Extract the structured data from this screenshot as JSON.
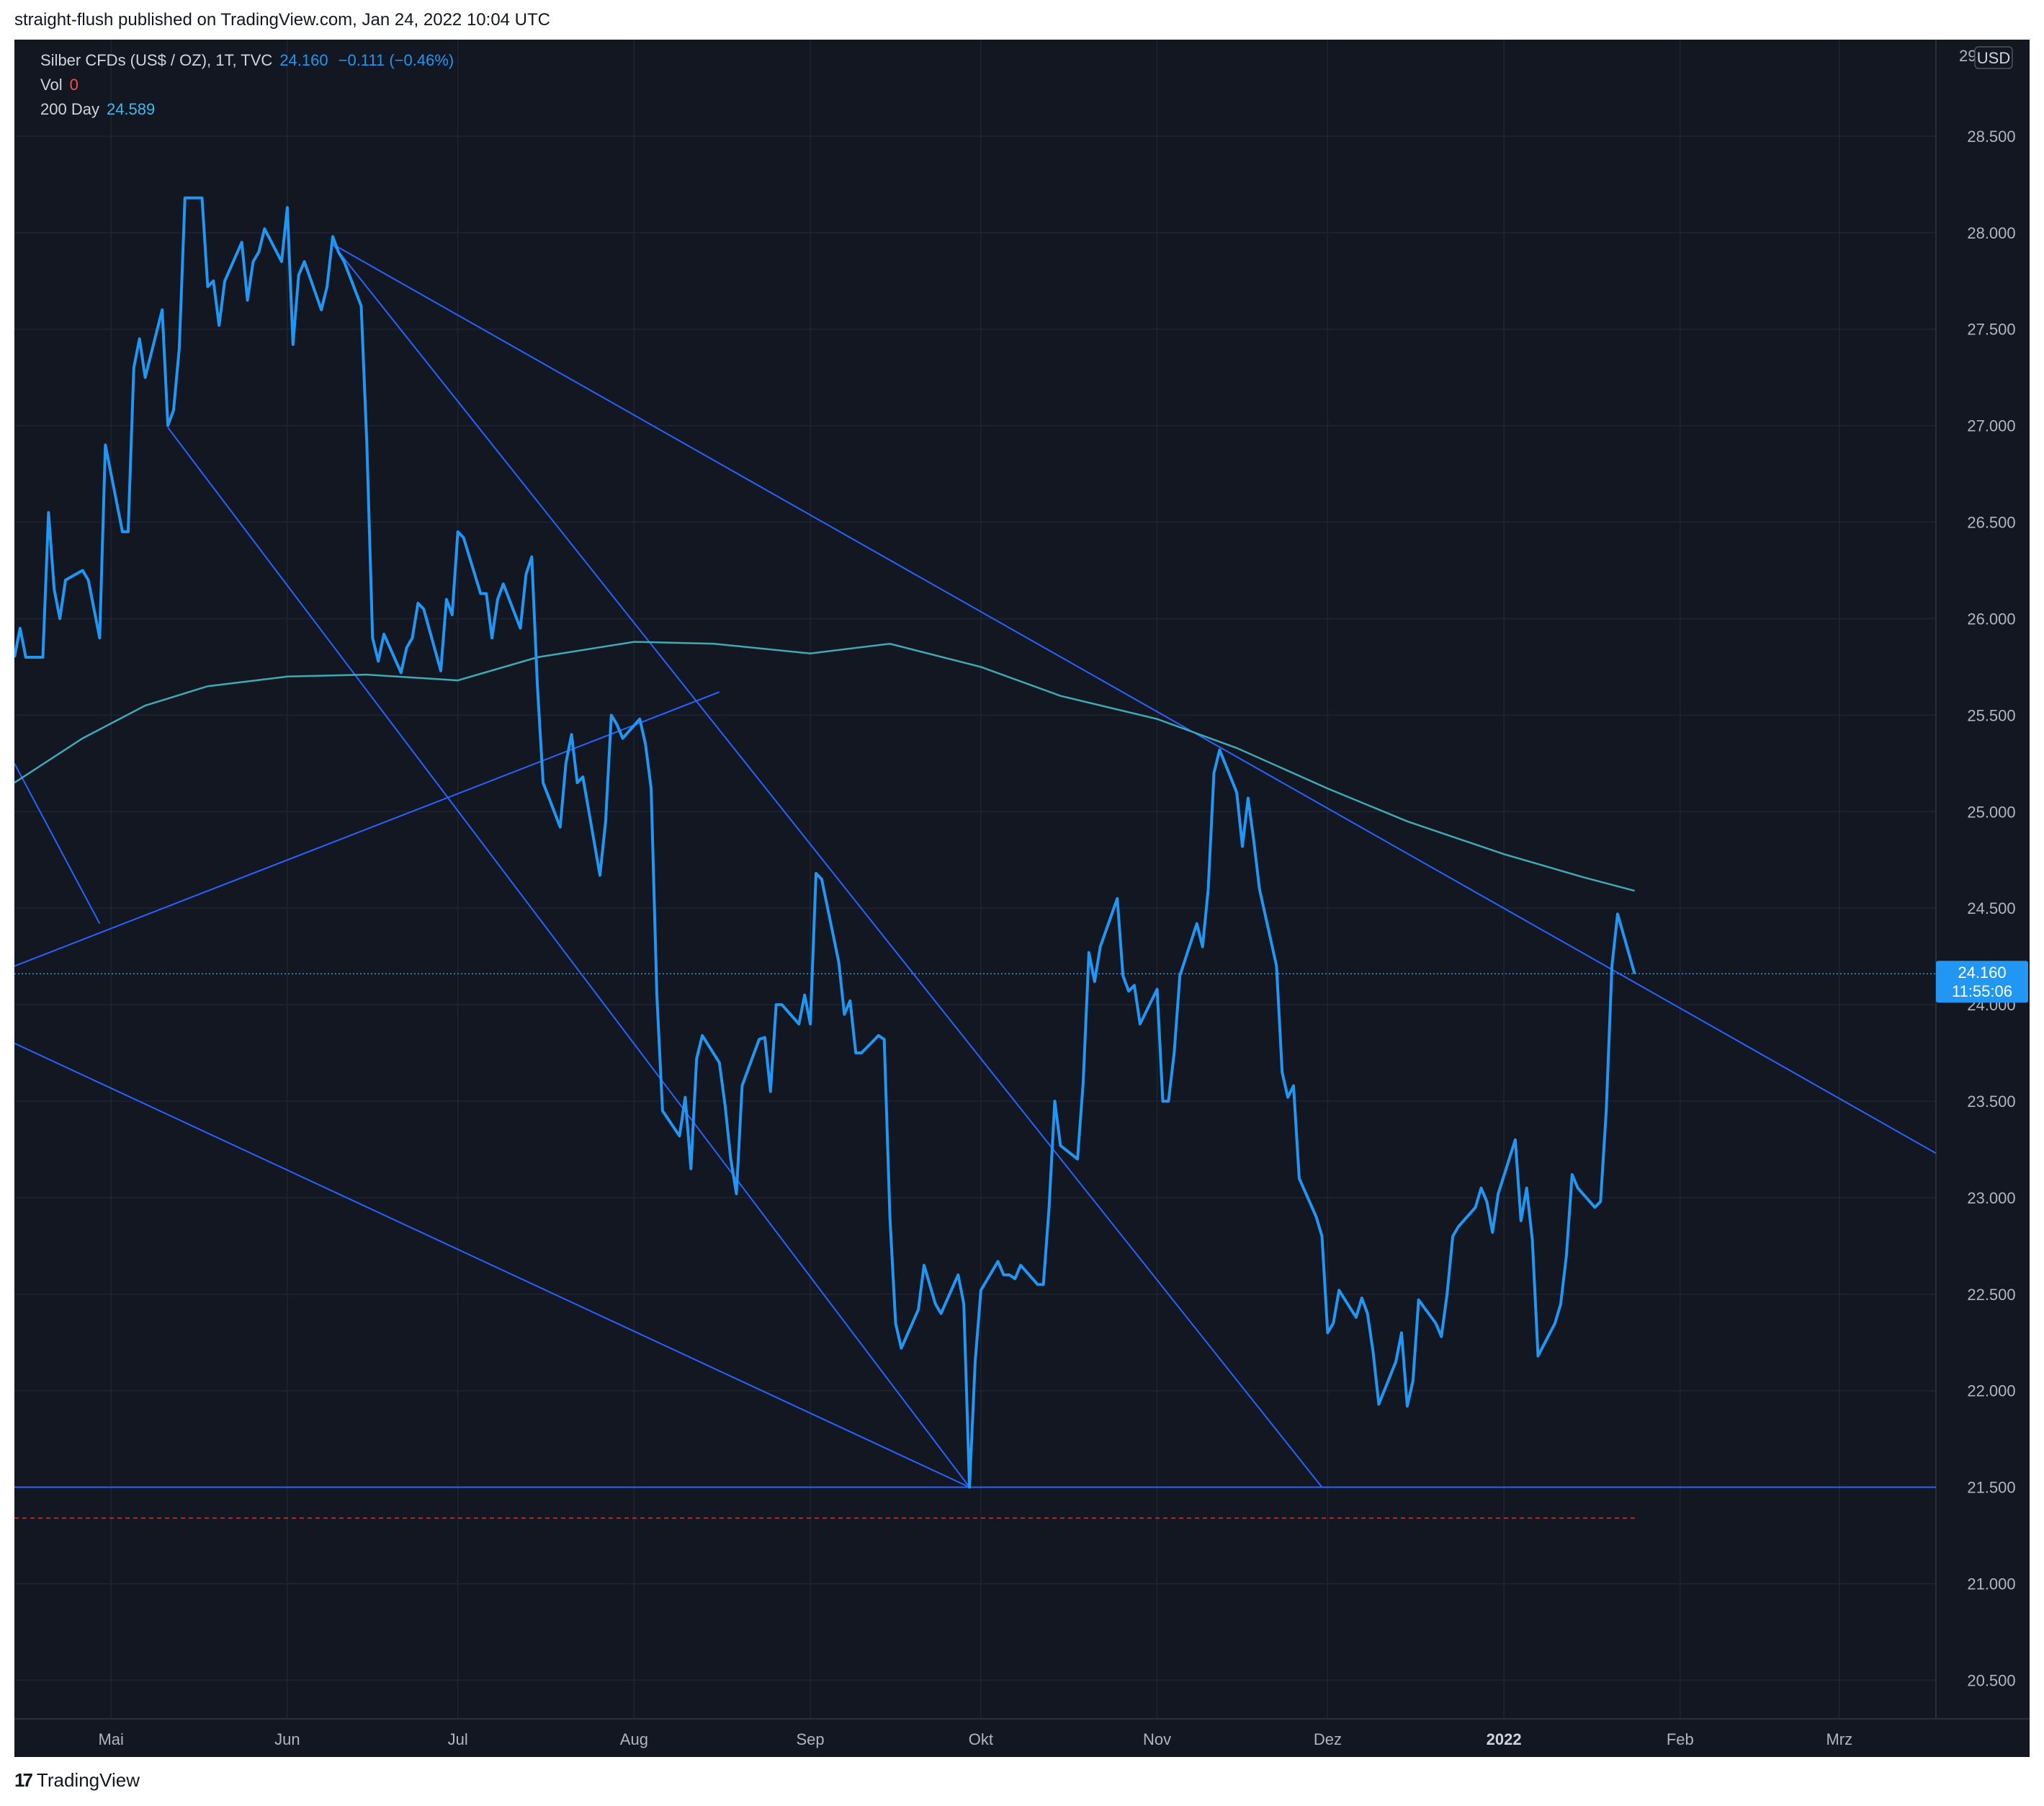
{
  "header": {
    "published": "straight-flush published on TradingView.com, Jan 24, 2022 10:04 UTC"
  },
  "legend": {
    "symbol": "Silber CFDs (US$ / OZ), 1T, TVC",
    "last": "24.160",
    "change": "−0.111 (−0.46%)",
    "vol_label": "Vol",
    "vol_value": "0",
    "ma_label": "200 Day",
    "ma_value": "24.589"
  },
  "axis": {
    "currency": "USD",
    "price_tag": "24.160",
    "countdown": "11:55:06",
    "top_partial_tick": "29"
  },
  "footer": {
    "brand": "TradingView",
    "logo": "17"
  },
  "colors": {
    "background": "#131722",
    "price_line": "#2196f3",
    "ma_line": "#3fa9b5",
    "trend_lines": "#2962ff",
    "grid": "#1f2433",
    "axis_text": "#b2b5be"
  },
  "chart_data": {
    "type": "line",
    "title": "Silber CFDs (US$ / OZ), 1T, TVC",
    "ylim": [
      20.3,
      29.0
    ],
    "y_ticks": [
      20.5,
      21.0,
      21.5,
      22.0,
      22.5,
      23.0,
      23.5,
      24.0,
      24.5,
      25.0,
      25.5,
      26.0,
      26.5,
      27.0,
      27.5,
      28.0,
      28.5
    ],
    "x_ticks": [
      {
        "label": "Mai",
        "date": "2021-05-01",
        "bold": false
      },
      {
        "label": "Jun",
        "date": "2021-06-01",
        "bold": false
      },
      {
        "label": "Jul",
        "date": "2021-07-01",
        "bold": false
      },
      {
        "label": "Aug",
        "date": "2021-08-01",
        "bold": false
      },
      {
        "label": "Sep",
        "date": "2021-09-01",
        "bold": false
      },
      {
        "label": "Okt",
        "date": "2021-10-01",
        "bold": false
      },
      {
        "label": "Nov",
        "date": "2021-11-01",
        "bold": false
      },
      {
        "label": "Dez",
        "date": "2021-12-01",
        "bold": false
      },
      {
        "label": "2022",
        "date": "2022-01-01",
        "bold": true
      },
      {
        "label": "Feb",
        "date": "2022-02-01",
        "bold": false
      },
      {
        "label": "Mrz",
        "date": "2022-03-01",
        "bold": false
      }
    ],
    "xlim": [
      "2021-04-14",
      "2022-03-18"
    ],
    "series": [
      {
        "values": [
          [
            "2021-04-14",
            25.8
          ],
          [
            "2021-04-15",
            25.95
          ],
          [
            "2021-04-16",
            25.8
          ],
          [
            "2021-04-19",
            25.8
          ],
          [
            "2021-04-20",
            26.55
          ],
          [
            "2021-04-21",
            26.15
          ],
          [
            "2021-04-22",
            26.0
          ],
          [
            "2021-04-23",
            26.2
          ],
          [
            "2021-04-26",
            26.25
          ],
          [
            "2021-04-27",
            26.2
          ],
          [
            "2021-04-28",
            26.05
          ],
          [
            "2021-04-29",
            25.9
          ],
          [
            "2021-04-30",
            26.9
          ],
          [
            "2021-05-03",
            26.45
          ],
          [
            "2021-05-04",
            26.45
          ],
          [
            "2021-05-05",
            27.3
          ],
          [
            "2021-05-06",
            27.45
          ],
          [
            "2021-05-07",
            27.25
          ],
          [
            "2021-05-10",
            27.6
          ],
          [
            "2021-05-11",
            27.0
          ],
          [
            "2021-05-12",
            27.08
          ],
          [
            "2021-05-13",
            27.4
          ],
          [
            "2021-05-14",
            28.18
          ],
          [
            "2021-05-17",
            28.18
          ],
          [
            "2021-05-18",
            27.72
          ],
          [
            "2021-05-19",
            27.75
          ],
          [
            "2021-05-20",
            27.52
          ],
          [
            "2021-05-21",
            27.75
          ],
          [
            "2021-05-24",
            27.95
          ],
          [
            "2021-05-25",
            27.65
          ],
          [
            "2021-05-26",
            27.85
          ],
          [
            "2021-05-27",
            27.9
          ],
          [
            "2021-05-28",
            28.02
          ],
          [
            "2021-05-31",
            27.85
          ],
          [
            "2021-06-01",
            28.13
          ],
          [
            "2021-06-02",
            27.42
          ],
          [
            "2021-06-03",
            27.78
          ],
          [
            "2021-06-04",
            27.85
          ],
          [
            "2021-06-07",
            27.6
          ],
          [
            "2021-06-08",
            27.72
          ],
          [
            "2021-06-09",
            27.98
          ],
          [
            "2021-06-10",
            27.9
          ],
          [
            "2021-06-11",
            27.85
          ],
          [
            "2021-06-14",
            27.62
          ],
          [
            "2021-06-15",
            26.9
          ],
          [
            "2021-06-16",
            25.9
          ],
          [
            "2021-06-17",
            25.78
          ],
          [
            "2021-06-18",
            25.92
          ],
          [
            "2021-06-21",
            25.72
          ],
          [
            "2021-06-22",
            25.85
          ],
          [
            "2021-06-23",
            25.9
          ],
          [
            "2021-06-24",
            26.08
          ],
          [
            "2021-06-25",
            26.05
          ],
          [
            "2021-06-28",
            25.73
          ],
          [
            "2021-06-29",
            26.1
          ],
          [
            "2021-06-30",
            26.02
          ],
          [
            "2021-07-01",
            26.45
          ],
          [
            "2021-07-02",
            26.42
          ],
          [
            "2021-07-05",
            26.13
          ],
          [
            "2021-07-06",
            26.13
          ],
          [
            "2021-07-07",
            25.9
          ],
          [
            "2021-07-08",
            26.1
          ],
          [
            "2021-07-09",
            26.18
          ],
          [
            "2021-07-12",
            25.95
          ],
          [
            "2021-07-13",
            26.23
          ],
          [
            "2021-07-14",
            26.32
          ],
          [
            "2021-07-15",
            25.65
          ],
          [
            "2021-07-16",
            25.15
          ],
          [
            "2021-07-19",
            24.92
          ],
          [
            "2021-07-20",
            25.25
          ],
          [
            "2021-07-21",
            25.4
          ],
          [
            "2021-07-22",
            25.15
          ],
          [
            "2021-07-23",
            25.18
          ],
          [
            "2021-07-26",
            24.67
          ],
          [
            "2021-07-27",
            24.95
          ],
          [
            "2021-07-28",
            25.5
          ],
          [
            "2021-07-29",
            25.45
          ],
          [
            "2021-07-30",
            25.38
          ],
          [
            "2021-08-02",
            25.48
          ],
          [
            "2021-08-03",
            25.35
          ],
          [
            "2021-08-04",
            25.12
          ],
          [
            "2021-08-05",
            24.05
          ],
          [
            "2021-08-06",
            23.45
          ],
          [
            "2021-08-09",
            23.32
          ],
          [
            "2021-08-10",
            23.52
          ],
          [
            "2021-08-11",
            23.15
          ],
          [
            "2021-08-12",
            23.72
          ],
          [
            "2021-08-13",
            23.84
          ],
          [
            "2021-08-16",
            23.7
          ],
          [
            "2021-08-17",
            23.48
          ],
          [
            "2021-08-18",
            23.2
          ],
          [
            "2021-08-19",
            23.02
          ],
          [
            "2021-08-20",
            23.58
          ],
          [
            "2021-08-23",
            23.82
          ],
          [
            "2021-08-24",
            23.83
          ],
          [
            "2021-08-25",
            23.55
          ],
          [
            "2021-08-26",
            24.0
          ],
          [
            "2021-08-27",
            24.0
          ],
          [
            "2021-08-30",
            23.9
          ],
          [
            "2021-08-31",
            24.05
          ],
          [
            "2021-09-01",
            23.9
          ],
          [
            "2021-09-02",
            24.68
          ],
          [
            "2021-09-03",
            24.65
          ],
          [
            "2021-09-06",
            24.22
          ],
          [
            "2021-09-07",
            23.95
          ],
          [
            "2021-09-08",
            24.02
          ],
          [
            "2021-09-09",
            23.75
          ],
          [
            "2021-09-10",
            23.75
          ],
          [
            "2021-09-13",
            23.84
          ],
          [
            "2021-09-14",
            23.82
          ],
          [
            "2021-09-15",
            22.9
          ],
          [
            "2021-09-16",
            22.35
          ],
          [
            "2021-09-17",
            22.22
          ],
          [
            "2021-09-20",
            22.42
          ],
          [
            "2021-09-21",
            22.65
          ],
          [
            "2021-09-22",
            22.55
          ],
          [
            "2021-09-23",
            22.45
          ],
          [
            "2021-09-24",
            22.4
          ],
          [
            "2021-09-27",
            22.6
          ],
          [
            "2021-09-28",
            22.45
          ],
          [
            "2021-09-29",
            21.5
          ],
          [
            "2021-09-30",
            22.15
          ],
          [
            "2021-10-01",
            22.52
          ],
          [
            "2021-10-04",
            22.67
          ],
          [
            "2021-10-05",
            22.6
          ],
          [
            "2021-10-06",
            22.6
          ],
          [
            "2021-10-07",
            22.58
          ],
          [
            "2021-10-08",
            22.65
          ],
          [
            "2021-10-11",
            22.55
          ],
          [
            "2021-10-12",
            22.55
          ],
          [
            "2021-10-13",
            22.95
          ],
          [
            "2021-10-14",
            23.5
          ],
          [
            "2021-10-15",
            23.27
          ],
          [
            "2021-10-18",
            23.2
          ],
          [
            "2021-10-19",
            23.6
          ],
          [
            "2021-10-20",
            24.27
          ],
          [
            "2021-10-21",
            24.12
          ],
          [
            "2021-10-22",
            24.3
          ],
          [
            "2021-10-25",
            24.55
          ],
          [
            "2021-10-26",
            24.15
          ],
          [
            "2021-10-27",
            24.07
          ],
          [
            "2021-10-28",
            24.1
          ],
          [
            "2021-10-29",
            23.9
          ],
          [
            "2021-11-01",
            24.08
          ],
          [
            "2021-11-02",
            23.5
          ],
          [
            "2021-11-03",
            23.5
          ],
          [
            "2021-11-04",
            23.75
          ],
          [
            "2021-11-05",
            24.15
          ],
          [
            "2021-11-08",
            24.42
          ],
          [
            "2021-11-09",
            24.3
          ],
          [
            "2021-11-10",
            24.6
          ],
          [
            "2021-11-11",
            25.2
          ],
          [
            "2021-11-12",
            25.32
          ],
          [
            "2021-11-15",
            25.1
          ],
          [
            "2021-11-16",
            24.82
          ],
          [
            "2021-11-17",
            25.07
          ],
          [
            "2021-11-18",
            24.85
          ],
          [
            "2021-11-19",
            24.6
          ],
          [
            "2021-11-22",
            24.2
          ],
          [
            "2021-11-23",
            23.65
          ],
          [
            "2021-11-24",
            23.52
          ],
          [
            "2021-11-25",
            23.58
          ],
          [
            "2021-11-26",
            23.1
          ],
          [
            "2021-11-29",
            22.9
          ],
          [
            "2021-11-30",
            22.8
          ],
          [
            "2021-12-01",
            22.3
          ],
          [
            "2021-12-02",
            22.35
          ],
          [
            "2021-12-03",
            22.52
          ],
          [
            "2021-12-06",
            22.38
          ],
          [
            "2021-12-07",
            22.48
          ],
          [
            "2021-12-08",
            22.4
          ],
          [
            "2021-12-09",
            22.2
          ],
          [
            "2021-12-10",
            21.93
          ],
          [
            "2021-12-13",
            22.15
          ],
          [
            "2021-12-14",
            22.3
          ],
          [
            "2021-12-15",
            21.92
          ],
          [
            "2021-12-16",
            22.05
          ],
          [
            "2021-12-17",
            22.47
          ],
          [
            "2021-12-20",
            22.35
          ],
          [
            "2021-12-21",
            22.28
          ],
          [
            "2021-12-22",
            22.5
          ],
          [
            "2021-12-23",
            22.8
          ],
          [
            "2021-12-24",
            22.85
          ],
          [
            "2021-12-27",
            22.95
          ],
          [
            "2021-12-28",
            23.05
          ],
          [
            "2021-12-29",
            22.98
          ],
          [
            "2021-12-30",
            22.82
          ],
          [
            "2021-12-31",
            23.02
          ],
          [
            "2022-01-03",
            23.3
          ],
          [
            "2022-01-04",
            22.88
          ],
          [
            "2022-01-05",
            23.05
          ],
          [
            "2022-01-06",
            22.78
          ],
          [
            "2022-01-07",
            22.18
          ],
          [
            "2022-01-10",
            22.35
          ],
          [
            "2022-01-11",
            22.45
          ],
          [
            "2022-01-12",
            22.7
          ],
          [
            "2022-01-13",
            23.12
          ],
          [
            "2022-01-14",
            23.05
          ],
          [
            "2022-01-17",
            22.95
          ],
          [
            "2022-01-18",
            22.98
          ],
          [
            "2022-01-19",
            23.45
          ],
          [
            "2022-01-20",
            24.2
          ],
          [
            "2022-01-21",
            24.47
          ],
          [
            "2022-01-24",
            24.16
          ]
        ]
      },
      {
        "name": "200 Day",
        "values": [
          [
            "2021-04-14",
            25.15
          ],
          [
            "2021-04-26",
            25.38
          ],
          [
            "2021-05-07",
            25.55
          ],
          [
            "2021-05-18",
            25.65
          ],
          [
            "2021-06-01",
            25.7
          ],
          [
            "2021-06-15",
            25.71
          ],
          [
            "2021-07-01",
            25.68
          ],
          [
            "2021-07-15",
            25.8
          ],
          [
            "2021-08-01",
            25.88
          ],
          [
            "2021-08-15",
            25.87
          ],
          [
            "2021-09-01",
            25.82
          ],
          [
            "2021-09-15",
            25.87
          ],
          [
            "2021-10-01",
            25.75
          ],
          [
            "2021-10-15",
            25.6
          ],
          [
            "2021-11-01",
            25.48
          ],
          [
            "2021-11-15",
            25.33
          ],
          [
            "2021-12-01",
            25.12
          ],
          [
            "2021-12-15",
            24.95
          ],
          [
            "2022-01-01",
            24.78
          ],
          [
            "2022-01-15",
            24.66
          ],
          [
            "2022-01-24",
            24.59
          ]
        ]
      }
    ],
    "trend_lines": [
      {
        "from": [
          "2021-06-09",
          27.94
        ],
        "to": [
          "2022-03-18",
          23.23
        ]
      },
      {
        "from": [
          "2021-06-09",
          27.94
        ],
        "to": [
          "2021-11-30",
          21.5
        ]
      },
      {
        "from": [
          "2021-05-11",
          26.99
        ],
        "to": [
          "2021-09-29",
          21.5
        ]
      },
      {
        "from": [
          "2021-04-14",
          23.8
        ],
        "to": [
          "2021-09-29",
          21.5
        ]
      },
      {
        "from": [
          "2021-04-14",
          24.2
        ],
        "to": [
          "2021-08-16",
          25.62
        ]
      },
      {
        "from": [
          "2021-04-14",
          25.25
        ],
        "to": [
          "2021-04-29",
          24.42
        ]
      }
    ],
    "hlines": [
      {
        "y": 21.5,
        "style": "solid",
        "xmax": "2022-03-18"
      },
      {
        "y": 21.34,
        "style": "dashed",
        "xmax": "2022-01-24"
      },
      {
        "y": 24.16,
        "style": "dotted",
        "xmax": "2022-03-18"
      }
    ],
    "last_value": 24.16
  }
}
